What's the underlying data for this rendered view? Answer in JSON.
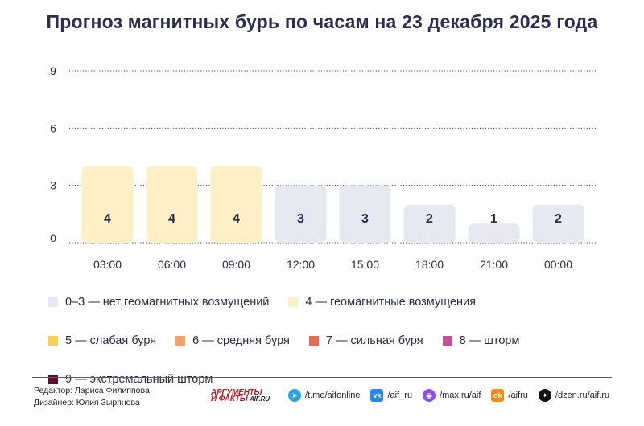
{
  "title": "Прогноз магнитных бурь по часам на 23 декабря 2025 года",
  "chart_data": {
    "type": "bar",
    "categories": [
      "03:00",
      "06:00",
      "09:00",
      "12:00",
      "15:00",
      "18:00",
      "21:00",
      "00:00"
    ],
    "values": [
      4,
      4,
      4,
      3,
      3,
      2,
      1,
      2
    ],
    "ylim": [
      0,
      9
    ],
    "yticks": [
      0,
      3,
      6,
      9
    ],
    "grid": true,
    "bar_colors": [
      "#fdf0c6",
      "#fdf0c6",
      "#fdf0c6",
      "#e7e9f2",
      "#e7e9f2",
      "#e7e9f2",
      "#e7e9f2",
      "#e7e9f2"
    ]
  },
  "legend": [
    {
      "label": "0–3 — нет геомагнитных возмущений",
      "color": "#e7e9f2"
    },
    {
      "label": "4 — геомагнитные возмущения",
      "color": "#fdf0c6"
    },
    {
      "label": "5 — слабая буря",
      "color": "#f9cf57"
    },
    {
      "label": "6 — средняя буря",
      "color": "#f4a267"
    },
    {
      "label": "7 — сильная буря",
      "color": "#ea6a55"
    },
    {
      "label": "8 — шторм",
      "color": "#c54f96"
    },
    {
      "label": "9 — экстремальный шторм",
      "color": "#5c0e2b"
    }
  ],
  "footer": {
    "editor": "Редактор: Лариса Филиппова",
    "designer": "Дизайнер: Юлия Зырянова",
    "logo_line1": "АРГУМЕНТЫ",
    "logo_line2": "И ФАКТЫ",
    "logo_site": "AIF.RU",
    "socials": [
      {
        "icon": "telegram-icon",
        "glyph": "➤",
        "color": "#2aa3df",
        "text": "/t.me/aifonline"
      },
      {
        "icon": "vk-icon",
        "glyph": "vk",
        "color": "#2787f5",
        "text": "/aif_ru"
      },
      {
        "icon": "max-icon",
        "glyph": "◉",
        "color": "#8a4cf0",
        "text": "/max.ru/aif"
      },
      {
        "icon": "ok-icon",
        "glyph": "ok",
        "color": "#f28c13",
        "text": "/aifru"
      },
      {
        "icon": "dzen-icon",
        "glyph": "✦",
        "color": "#111111",
        "text": "/dzen.ru/aif.ru"
      }
    ]
  }
}
